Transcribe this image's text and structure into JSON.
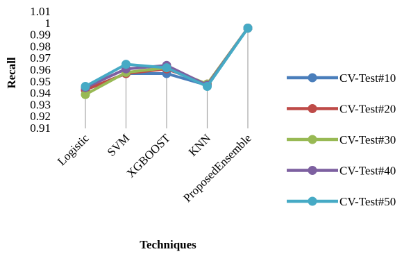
{
  "chart_data": {
    "type": "line",
    "title": "",
    "xlabel": "Techniques",
    "ylabel": "Recall",
    "categories": [
      "Logistic",
      "SVM",
      "XGBOOST",
      "KNN",
      "ProposedEnsemble"
    ],
    "ylim": [
      0.91,
      1.01
    ],
    "yticks": [
      "0.91",
      "0.92",
      "0.93",
      "0.94",
      "0.95",
      "0.96",
      "0.97",
      "0.98",
      "0.99",
      "1",
      "1.01"
    ],
    "grid": false,
    "drop_lines": true,
    "legend_position": "right",
    "series": [
      {
        "name": "CV-Test#10",
        "color": "#4a7ebb",
        "values": [
          0.943,
          0.957,
          0.957,
          0.947,
          0.996
        ]
      },
      {
        "name": "CV-Test#20",
        "color": "#be4b48",
        "values": [
          0.943,
          0.957,
          0.961,
          0.948,
          0.996
        ]
      },
      {
        "name": "CV-Test#30",
        "color": "#98b954",
        "values": [
          0.939,
          0.958,
          0.962,
          0.948,
          0.996
        ]
      },
      {
        "name": "CV-Test#40",
        "color": "#7d60a0",
        "values": [
          0.945,
          0.961,
          0.964,
          0.947,
          0.996
        ]
      },
      {
        "name": "CV-Test#50",
        "color": "#46aac5",
        "values": [
          0.946,
          0.965,
          0.962,
          0.946,
          0.996
        ]
      }
    ]
  }
}
